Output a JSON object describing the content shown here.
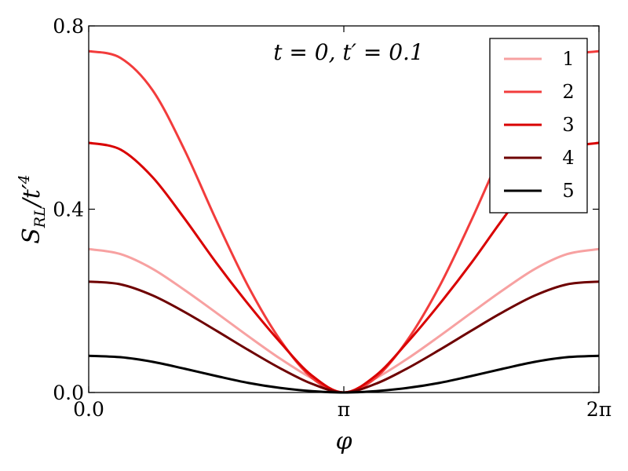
{
  "chart_data": {
    "type": "line",
    "xlabel": "φ",
    "ylabel_main": "S",
    "ylabel_sub": "RL",
    "ylabel_tail": "/t′",
    "ylabel_sup": "4",
    "annotation": "t = 0, t′ = 0.1",
    "x_unit": "radians",
    "xlim": [
      0,
      6.283185307
    ],
    "ylim": [
      0,
      0.8
    ],
    "x_ticks": [
      {
        "value": 0,
        "label": "0.0"
      },
      {
        "value": 3.141592654,
        "label": "π"
      },
      {
        "value": 6.283185307,
        "label": "2π"
      }
    ],
    "y_ticks": [
      {
        "value": 0.0,
        "label": "0.0"
      },
      {
        "value": 0.4,
        "label": "0.4"
      },
      {
        "value": 0.8,
        "label": "0.8"
      }
    ],
    "grid": false,
    "legend_position": "top-right",
    "x": [
      0,
      0.3927,
      0.7854,
      1.1781,
      1.5708,
      1.9635,
      2.3562,
      2.7489,
      3.1416,
      3.5343,
      3.927,
      4.3197,
      4.7124,
      5.1051,
      5.4978,
      5.8905,
      6.2832
    ],
    "series": [
      {
        "name": "1",
        "color": "#f7a1a1",
        "values": [
          0.313,
          0.302,
          0.27,
          0.224,
          0.174,
          0.123,
          0.074,
          0.031,
          0.0,
          0.031,
          0.074,
          0.123,
          0.174,
          0.224,
          0.27,
          0.302,
          0.313
        ]
      },
      {
        "name": "2",
        "color": "#f23c3c",
        "values": [
          0.745,
          0.73,
          0.66,
          0.53,
          0.376,
          0.232,
          0.115,
          0.032,
          0.0,
          0.032,
          0.115,
          0.232,
          0.376,
          0.53,
          0.66,
          0.73,
          0.745
        ]
      },
      {
        "name": "3",
        "color": "#d90000",
        "values": [
          0.545,
          0.53,
          0.47,
          0.38,
          0.283,
          0.193,
          0.11,
          0.037,
          0.0,
          0.037,
          0.11,
          0.193,
          0.283,
          0.38,
          0.47,
          0.53,
          0.545
        ]
      },
      {
        "name": "4",
        "color": "#6e0000",
        "values": [
          0.242,
          0.236,
          0.212,
          0.176,
          0.135,
          0.093,
          0.053,
          0.019,
          0.0,
          0.019,
          0.053,
          0.093,
          0.135,
          0.176,
          0.212,
          0.236,
          0.242
        ]
      },
      {
        "name": "5",
        "color": "#000000",
        "values": [
          0.08,
          0.077,
          0.067,
          0.052,
          0.036,
          0.021,
          0.01,
          0.003,
          0.0,
          0.003,
          0.01,
          0.021,
          0.036,
          0.052,
          0.067,
          0.077,
          0.08
        ]
      }
    ]
  }
}
